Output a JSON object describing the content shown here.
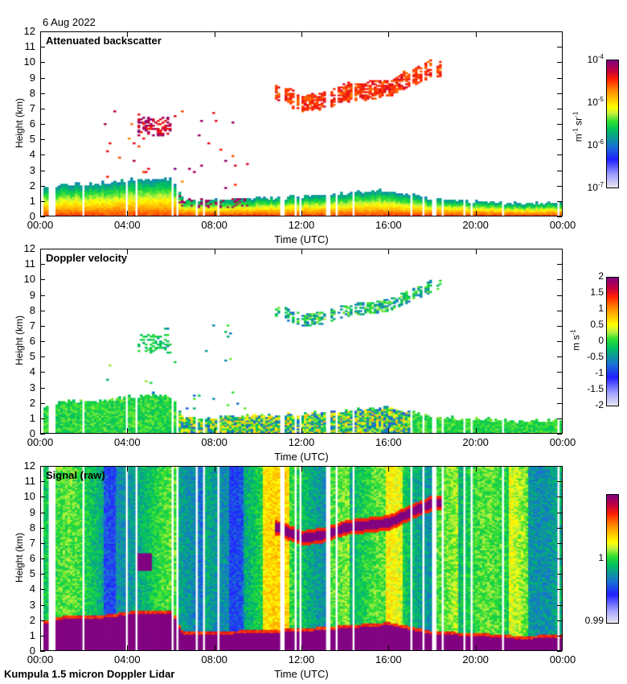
{
  "header": {
    "date": "6 Aug 2022"
  },
  "footer": {
    "instrument": "Kumpula 1.5 micron Doppler Lidar"
  },
  "chart_data": [
    {
      "type": "heatmap",
      "title": "Attenuated backscatter",
      "xlabel": "Time (UTC)",
      "ylabel": "Height (km)",
      "xlim": [
        0,
        24
      ],
      "ylim": [
        0,
        12
      ],
      "xticks": [
        "00:00",
        "04:00",
        "08:00",
        "12:00",
        "16:00",
        "20:00",
        "00:00"
      ],
      "yticks": [
        "0",
        "1",
        "2",
        "3",
        "4",
        "5",
        "6",
        "7",
        "8",
        "9",
        "10",
        "11",
        "12"
      ],
      "colorbar": {
        "unit_base": "m",
        "unit_exp1": "-1",
        "unit_mid": " sr",
        "unit_exp2": "-1",
        "scale": "log",
        "ticks": [
          {
            "base": "10",
            "exp": "-4"
          },
          {
            "base": "10",
            "exp": "-5"
          },
          {
            "base": "10",
            "exp": "-6"
          },
          {
            "base": "10",
            "exp": "-7"
          }
        ],
        "range": [
          1e-07,
          0.0001
        ]
      },
      "features": {
        "boundary_layer_top_km": [
          [
            0,
            1.7
          ],
          [
            1,
            2.0
          ],
          [
            2,
            2.0
          ],
          [
            3,
            2.1
          ],
          [
            4,
            2.3
          ],
          [
            5,
            2.4
          ],
          [
            6,
            2.3
          ],
          [
            6.5,
            1.0
          ],
          [
            8,
            1.0
          ],
          [
            10,
            1.1
          ],
          [
            12,
            1.2
          ],
          [
            14,
            1.4
          ],
          [
            16,
            1.6
          ],
          [
            17,
            1.3
          ],
          [
            18,
            1.0
          ],
          [
            20,
            0.9
          ],
          [
            22,
            0.7
          ],
          [
            24,
            0.8
          ]
        ],
        "cirrus_band_km": [
          [
            10.8,
            8.0
          ],
          [
            12,
            7.3
          ],
          [
            13,
            7.5
          ],
          [
            14,
            8.0
          ],
          [
            16,
            8.3
          ],
          [
            17,
            9.0
          ],
          [
            18,
            9.6
          ]
        ]
      }
    },
    {
      "type": "heatmap",
      "title": "Doppler velocity",
      "xlabel": "Time (UTC)",
      "ylabel": "Height (km)",
      "xlim": [
        0,
        24
      ],
      "ylim": [
        0,
        12
      ],
      "xticks": [
        "00:00",
        "04:00",
        "08:00",
        "12:00",
        "16:00",
        "20:00",
        "00:00"
      ],
      "yticks": [
        "0",
        "1",
        "2",
        "3",
        "4",
        "5",
        "6",
        "7",
        "8",
        "9",
        "10",
        "11",
        "12"
      ],
      "colorbar": {
        "unit_base": "m s",
        "unit_exp": "-1",
        "scale": "linear",
        "ticks": [
          "2",
          "1.5",
          "1",
          "0.5",
          "0",
          "-0.5",
          "-1",
          "-1.5",
          "-2"
        ],
        "range": [
          -2,
          2
        ]
      }
    },
    {
      "type": "heatmap",
      "title": "Signal (raw)",
      "xlabel": "Time (UTC)",
      "ylabel": "Height (km)",
      "xlim": [
        0,
        24
      ],
      "ylim": [
        0,
        12
      ],
      "xticks": [
        "00:00",
        "04:00",
        "08:00",
        "12:00",
        "16:00",
        "20:00",
        "00:00"
      ],
      "yticks": [
        "0",
        "1",
        "2",
        "3",
        "4",
        "5",
        "6",
        "7",
        "8",
        "9",
        "10",
        "11",
        "12"
      ],
      "colorbar": {
        "scale": "linear",
        "ticks": [
          "1",
          "0.99"
        ],
        "range": [
          0.99,
          1.01
        ]
      }
    }
  ],
  "colors": {
    "purple": "#800080",
    "red": "#ff2000",
    "orange": "#ff8000",
    "yellow": "#ffff00",
    "green": "#30e030",
    "teal": "#00a080",
    "blue": "#2020ff",
    "pale": "#e6e6f0"
  }
}
